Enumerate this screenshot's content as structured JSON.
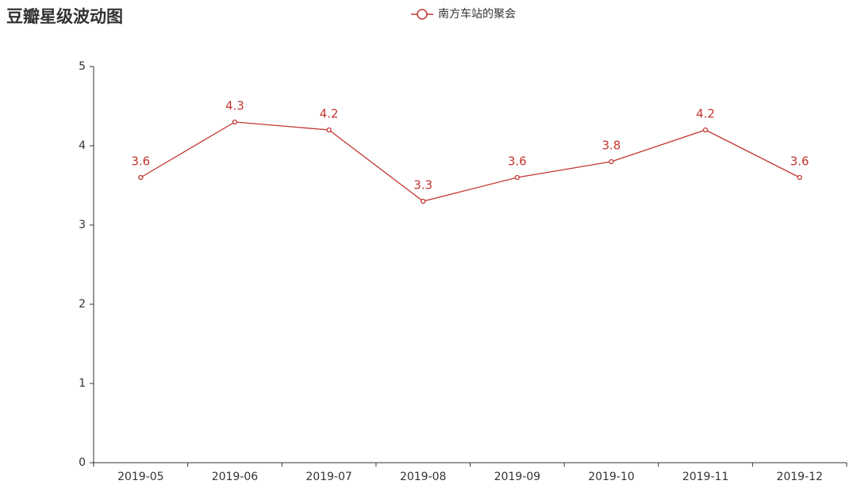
{
  "chart_data": {
    "type": "line",
    "title": "豆瓣星级波动图",
    "categories": [
      "2019-05",
      "2019-06",
      "2019-07",
      "2019-08",
      "2019-09",
      "2019-10",
      "2019-11",
      "2019-12"
    ],
    "series": [
      {
        "name": "南方车站的聚会",
        "color": "#c23531",
        "values": [
          3.6,
          4.3,
          4.2,
          3.3,
          3.6,
          3.8,
          4.2,
          3.6
        ]
      }
    ],
    "ylim": [
      0,
      5
    ],
    "yticks": [
      0,
      1,
      2,
      3,
      4,
      5
    ],
    "grid": false,
    "legend": "top"
  }
}
